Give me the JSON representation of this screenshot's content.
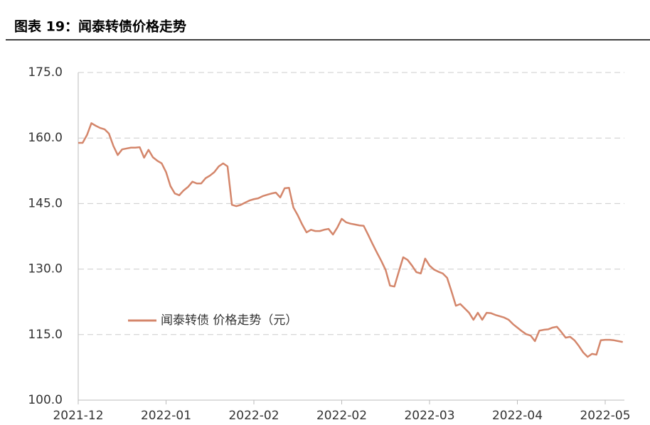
{
  "title": "图表 19：闻泰转债价格走势",
  "chart_data": {
    "type": "line",
    "categories": [
      "2021-12",
      null,
      null,
      null,
      null,
      null,
      null,
      null,
      null,
      null,
      null,
      null,
      null,
      null,
      null,
      null,
      null,
      null,
      null,
      null,
      "2022-01",
      null,
      null,
      null,
      null,
      null,
      null,
      null,
      null,
      null,
      null,
      null,
      null,
      null,
      null,
      null,
      null,
      null,
      null,
      null,
      "2022-02",
      null,
      null,
      null,
      null,
      null,
      null,
      null,
      null,
      null,
      null,
      null,
      null,
      null,
      null,
      null,
      null,
      null,
      null,
      null,
      "2022-02",
      null,
      null,
      null,
      null,
      null,
      null,
      null,
      null,
      null,
      null,
      null,
      null,
      null,
      null,
      null,
      null,
      null,
      null,
      null,
      "2022-03",
      null,
      null,
      null,
      null,
      null,
      null,
      null,
      null,
      null,
      null,
      null,
      null,
      null,
      null,
      null,
      null,
      null,
      null,
      null,
      "2022-04",
      null,
      null,
      null,
      null,
      null,
      null,
      null,
      null,
      null,
      null,
      null,
      null,
      null,
      null,
      null,
      null,
      null,
      null,
      null,
      "2022-05",
      null,
      null,
      null,
      null
    ],
    "series": [
      {
        "name": "闻泰转债 价格走势（元）",
        "color": "#d4866b",
        "values": [
          158.9,
          158.9,
          160.7,
          163.4,
          162.8,
          162.3,
          162.0,
          161.0,
          158.2,
          156.1,
          157.4,
          157.6,
          157.8,
          157.8,
          157.9,
          155.5,
          157.3,
          155.6,
          154.8,
          154.2,
          152.2,
          149.0,
          147.3,
          146.9,
          148.0,
          148.8,
          150.0,
          149.6,
          149.6,
          150.8,
          151.4,
          152.2,
          153.5,
          154.2,
          153.5,
          144.7,
          144.4,
          144.7,
          145.2,
          145.7,
          146.0,
          146.2,
          146.7,
          147.0,
          147.3,
          147.5,
          146.4,
          148.5,
          148.6,
          144.1,
          142.3,
          140.2,
          138.4,
          139.0,
          138.7,
          138.7,
          139.0,
          139.2,
          137.9,
          139.5,
          141.5,
          140.7,
          140.4,
          140.2,
          140.0,
          139.9,
          137.9,
          135.8,
          133.8,
          131.9,
          129.8,
          126.2,
          126.0,
          129.4,
          132.7,
          132.1,
          130.8,
          129.3,
          129.0,
          132.4,
          130.8,
          129.9,
          129.4,
          129.0,
          128.0,
          124.9,
          121.6,
          122.0,
          121.0,
          120.0,
          118.4,
          120.0,
          118.4,
          120.0,
          119.9,
          119.5,
          119.2,
          118.9,
          118.4,
          117.4,
          116.6,
          115.8,
          115.1,
          114.8,
          113.5,
          115.9,
          116.1,
          116.2,
          116.6,
          116.8,
          115.6,
          114.3,
          114.5,
          113.7,
          112.4,
          110.9,
          109.9,
          110.6,
          110.4,
          113.7,
          113.8,
          113.8,
          113.7,
          113.5,
          113.3
        ]
      }
    ],
    "ylim": [
      100,
      175
    ],
    "yticks": [
      {
        "value": 100,
        "label": "100.0"
      },
      {
        "value": 115,
        "label": "115.0"
      },
      {
        "value": 130,
        "label": "130.0"
      },
      {
        "value": 145,
        "label": "145.0"
      },
      {
        "value": 160,
        "label": "160.0"
      },
      {
        "value": 175,
        "label": "175.0"
      }
    ],
    "grid": true
  }
}
